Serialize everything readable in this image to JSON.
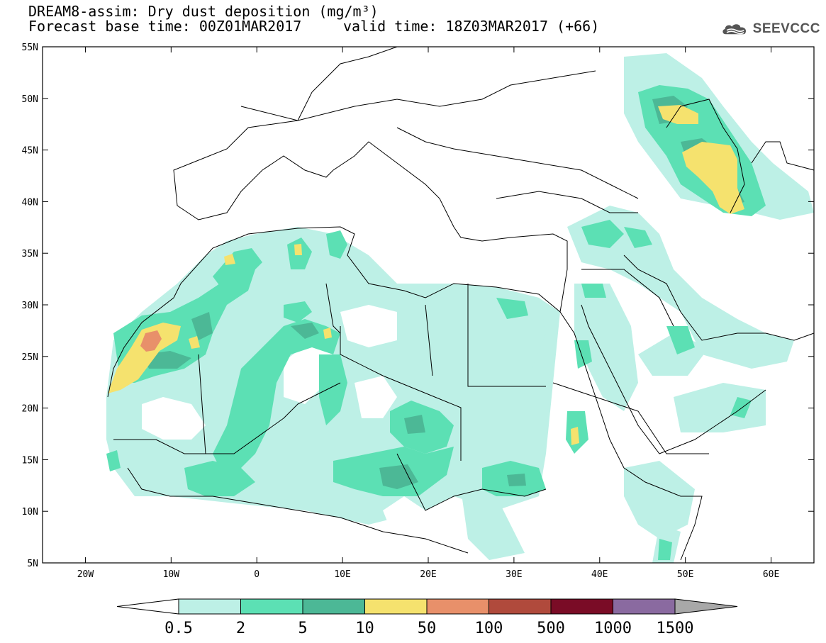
{
  "title": {
    "line1": "DREAM8-assim: Dry dust deposition (mg/m³)",
    "line2_left": "Forecast base time: 00Z01MAR2017",
    "line2_right": "valid time: 18Z03MAR2017 (+66)"
  },
  "logo": {
    "text": "SEEVCCC",
    "icon": "cloud-logo-icon"
  },
  "map": {
    "lon_range": [
      -25,
      65
    ],
    "lat_range": [
      5,
      55
    ],
    "lon_ticks": [
      {
        "v": -20,
        "label": "20W"
      },
      {
        "v": -10,
        "label": "10W"
      },
      {
        "v": 0,
        "label": "0"
      },
      {
        "v": 10,
        "label": "10E"
      },
      {
        "v": 20,
        "label": "20E"
      },
      {
        "v": 30,
        "label": "30E"
      },
      {
        "v": 40,
        "label": "40E"
      },
      {
        "v": 50,
        "label": "50E"
      },
      {
        "v": 60,
        "label": "60E"
      }
    ],
    "lat_ticks": [
      {
        "v": 5,
        "label": "5N"
      },
      {
        "v": 10,
        "label": "10N"
      },
      {
        "v": 15,
        "label": "15N"
      },
      {
        "v": 20,
        "label": "20N"
      },
      {
        "v": 25,
        "label": "25N"
      },
      {
        "v": 30,
        "label": "30N"
      },
      {
        "v": 35,
        "label": "35N"
      },
      {
        "v": 40,
        "label": "40N"
      },
      {
        "v": 45,
        "label": "45N"
      },
      {
        "v": 50,
        "label": "50N"
      },
      {
        "v": 55,
        "label": "55N"
      }
    ]
  },
  "colorbar": {
    "labels": [
      "0.5",
      "2",
      "5",
      "10",
      "50",
      "100",
      "500",
      "1000",
      "1500"
    ],
    "colors": [
      "#bdf0e6",
      "#5ce0b4",
      "#4cb896",
      "#f5e26e",
      "#e8906a",
      "#b04a3c",
      "#7a0c26",
      "#8a6aa0"
    ],
    "low_end_color": "#ffffff",
    "high_end_color": "#a8a8a8"
  }
}
